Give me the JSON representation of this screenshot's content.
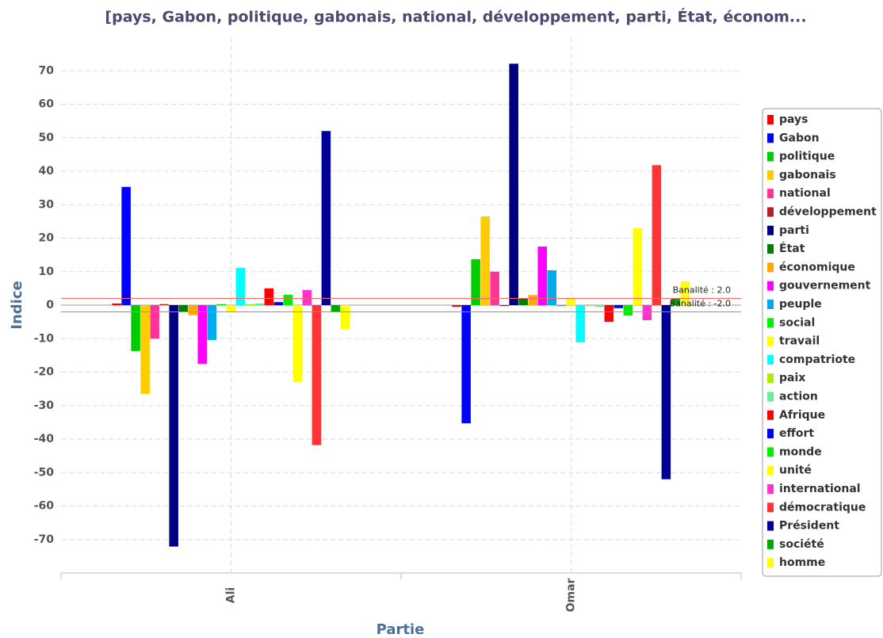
{
  "chart_data": {
    "type": "bar",
    "title": "[pays, Gabon, politique, gabonais, national, développement, parti, État, économ...",
    "x_label": "Partie",
    "y_label": "Indice",
    "categories": [
      "Ali",
      "Omar"
    ],
    "ylim": [
      -80,
      80
    ],
    "yticks": [
      -70,
      -60,
      -50,
      -40,
      -30,
      -20,
      -10,
      0,
      10,
      20,
      30,
      40,
      50,
      60,
      70
    ],
    "grid": true,
    "legend": "right",
    "reference_lines": [
      {
        "value": 2,
        "label": "Banalité : 2.0"
      },
      {
        "value": -2,
        "label": "Banalité : -2.0"
      }
    ],
    "series": [
      {
        "name": "pays",
        "color": "#ff0000",
        "values": [
          0.5,
          -0.5
        ]
      },
      {
        "name": "Gabon",
        "color": "#0000ff",
        "values": [
          35.3,
          -35.3
        ]
      },
      {
        "name": "politique",
        "color": "#00cc00",
        "values": [
          -13.7,
          13.7
        ]
      },
      {
        "name": "gabonais",
        "color": "#ffcc00",
        "values": [
          -26.5,
          26.5
        ]
      },
      {
        "name": "national",
        "color": "#ff3399",
        "values": [
          -10,
          10
        ]
      },
      {
        "name": "développement",
        "color": "#b22222",
        "values": [
          0.3,
          -0.3
        ]
      },
      {
        "name": "parti",
        "color": "#000080",
        "values": [
          -72.1,
          72.1
        ]
      },
      {
        "name": "État",
        "color": "#008000",
        "values": [
          -2.1,
          2.1
        ]
      },
      {
        "name": "économique",
        "color": "#ffaa00",
        "values": [
          -3,
          3
        ]
      },
      {
        "name": "gouvernement",
        "color": "#ff00ff",
        "values": [
          -17.5,
          17.5
        ]
      },
      {
        "name": "peuple",
        "color": "#00aaee",
        "values": [
          -10.4,
          10.4
        ]
      },
      {
        "name": "social",
        "color": "#00ee00",
        "values": [
          0.3,
          -0.3
        ]
      },
      {
        "name": "travail",
        "color": "#ffff00",
        "values": [
          -2,
          2
        ]
      },
      {
        "name": "compatriote",
        "color": "#00ffff",
        "values": [
          11.1,
          -11.1
        ]
      },
      {
        "name": "paix",
        "color": "#aaee00",
        "values": [
          0.3,
          -0.3
        ]
      },
      {
        "name": "action",
        "color": "#66ee99",
        "values": [
          0.5,
          -0.5
        ]
      },
      {
        "name": "Afrique",
        "color": "#ff0000",
        "values": [
          5,
          -5
        ]
      },
      {
        "name": "effort",
        "color": "#0000ff",
        "values": [
          0.9,
          -0.9
        ]
      },
      {
        "name": "monde",
        "color": "#00ee00",
        "values": [
          3.1,
          -3.1
        ]
      },
      {
        "name": "unité",
        "color": "#ffff00",
        "values": [
          -23,
          23
        ]
      },
      {
        "name": "international",
        "color": "#ff33cc",
        "values": [
          4.5,
          -4.5
        ]
      },
      {
        "name": "démocratique",
        "color": "#ff3333",
        "values": [
          -41.8,
          41.8
        ]
      },
      {
        "name": "Président",
        "color": "#000099",
        "values": [
          52,
          -52
        ]
      },
      {
        "name": "société",
        "color": "#00aa00",
        "values": [
          -1.9,
          1.9
        ]
      },
      {
        "name": "homme",
        "color": "#ffff00",
        "values": [
          -7.1,
          7.1
        ]
      }
    ]
  }
}
